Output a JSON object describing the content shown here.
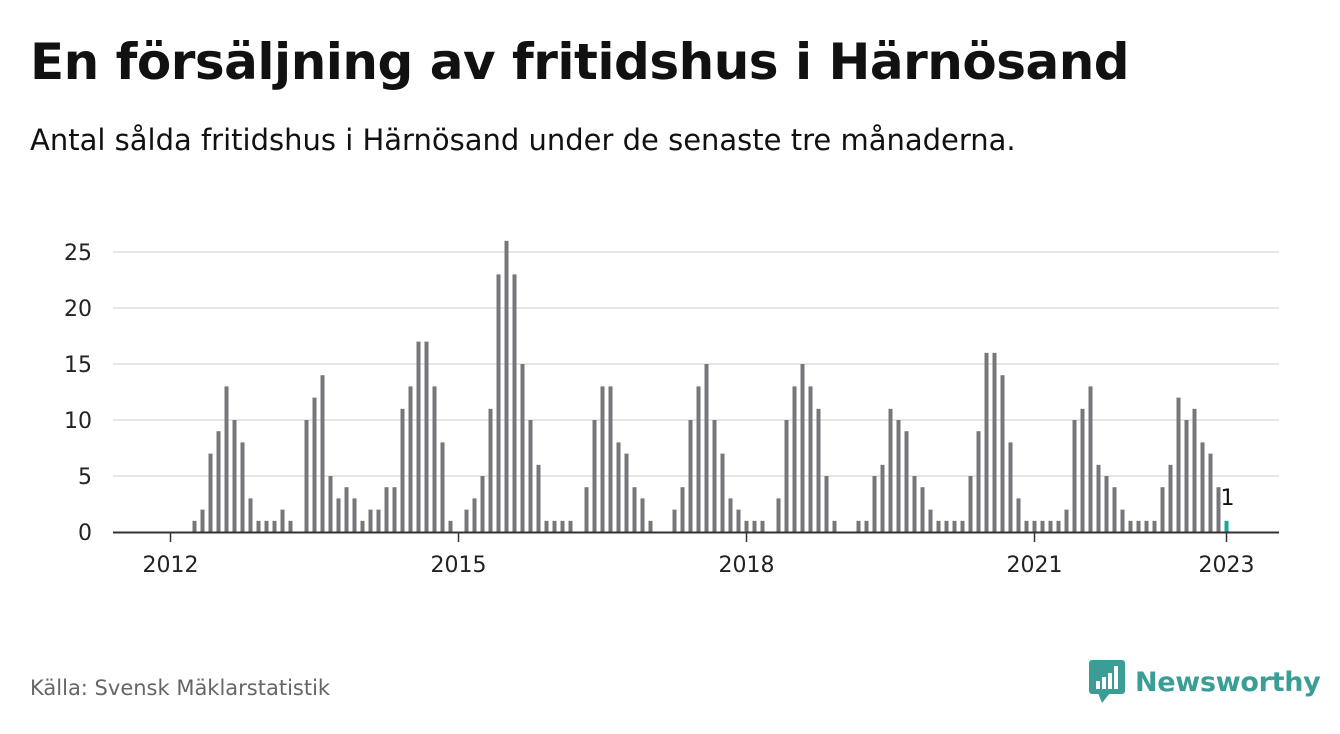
{
  "title": "En försäljning av fritidshus i Härnösand",
  "subtitle": "Antal sålda fritidshus i Härnösand under de senaste tre månaderna.",
  "source": "Källa: Svensk Mäklarstatistik",
  "brand": {
    "name": "Newsworthy",
    "icon": "newsworthy-logo-icon",
    "color": "#3a9e97"
  },
  "colors": {
    "bar": "#77767b",
    "highlight": "#1aa69c",
    "grid": "#dddddd",
    "axis": "#333333",
    "text": "#222222"
  },
  "chart_data": {
    "type": "bar",
    "xlabel": "",
    "ylabel": "",
    "ylim": [
      0,
      26
    ],
    "yticks": [
      0,
      5,
      10,
      15,
      20,
      25
    ],
    "grid": true,
    "xticks": [
      "2012",
      "2015",
      "2018",
      "2021",
      "2023"
    ],
    "start_period": "2012-01",
    "end_period": "2023-01",
    "values": [
      0,
      0,
      0,
      1,
      2,
      7,
      9,
      13,
      10,
      8,
      3,
      1,
      1,
      1,
      2,
      1,
      0,
      10,
      12,
      14,
      5,
      3,
      4,
      3,
      1,
      2,
      2,
      4,
      4,
      11,
      13,
      17,
      17,
      13,
      8,
      1,
      0,
      2,
      3,
      5,
      11,
      23,
      26,
      23,
      15,
      10,
      6,
      1,
      1,
      1,
      1,
      0,
      4,
      10,
      13,
      13,
      8,
      7,
      4,
      3,
      1,
      0,
      0,
      2,
      4,
      10,
      13,
      15,
      10,
      7,
      3,
      2,
      1,
      1,
      1,
      0,
      3,
      10,
      13,
      15,
      13,
      11,
      5,
      1,
      0,
      0,
      1,
      1,
      5,
      6,
      11,
      10,
      9,
      5,
      4,
      2,
      1,
      1,
      1,
      1,
      5,
      9,
      16,
      16,
      14,
      8,
      3,
      1,
      1,
      1,
      1,
      1,
      2,
      10,
      11,
      13,
      6,
      5,
      4,
      2,
      1,
      1,
      1,
      1,
      4,
      6,
      12,
      10,
      11,
      8,
      7,
      4,
      1
    ],
    "highlight_index": 132,
    "annotation": "1"
  }
}
